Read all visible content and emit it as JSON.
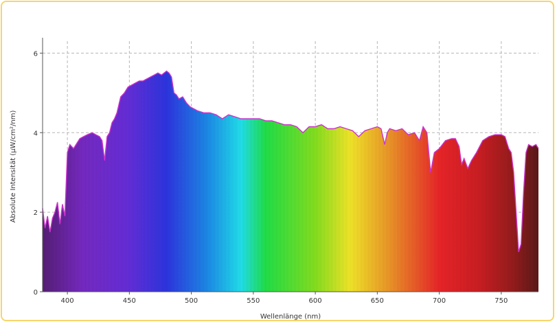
{
  "chart_data": {
    "type": "area",
    "title": "",
    "xlabel": "Wellenlänge (nm)",
    "ylabel": "Absolute Intensität (µW/cm²/nm)",
    "xlim": [
      380,
      780
    ],
    "ylim": [
      0,
      6.3
    ],
    "xticks": [
      400,
      450,
      500,
      550,
      600,
      650,
      700,
      750
    ],
    "yticks": [
      0,
      2,
      4,
      6
    ],
    "grid": true,
    "fill": "spectral-rainbow",
    "outline_color": "#cc33cc",
    "series": [
      {
        "x": [
          380,
          382,
          384,
          386,
          388,
          390,
          392,
          394,
          396,
          398,
          400,
          402,
          405,
          408,
          410,
          413,
          416,
          420,
          423,
          426,
          428,
          430,
          432,
          434,
          436,
          438,
          440,
          443,
          446,
          449,
          452,
          455,
          458,
          461,
          464,
          467,
          470,
          473,
          476,
          478,
          480,
          482,
          484,
          486,
          488,
          490,
          493,
          496,
          499,
          502,
          505,
          510,
          515,
          520,
          525,
          530,
          535,
          540,
          545,
          550,
          555,
          560,
          565,
          570,
          575,
          580,
          585,
          590,
          595,
          600,
          605,
          610,
          615,
          620,
          625,
          630,
          635,
          640,
          645,
          650,
          653,
          656,
          658,
          660,
          665,
          670,
          675,
          680,
          684,
          687,
          690,
          693,
          696,
          700,
          705,
          710,
          713,
          716,
          718,
          720,
          723,
          726,
          730,
          735,
          740,
          745,
          750,
          753,
          756,
          758,
          760,
          762,
          764,
          766,
          768,
          770,
          772,
          775,
          778,
          780
        ],
        "y": [
          2.1,
          1.6,
          1.9,
          1.5,
          1.85,
          2.0,
          2.25,
          1.7,
          2.2,
          1.9,
          3.5,
          3.7,
          3.6,
          3.75,
          3.85,
          3.9,
          3.95,
          4.0,
          3.95,
          3.9,
          3.8,
          3.3,
          3.9,
          4.0,
          4.25,
          4.35,
          4.5,
          4.9,
          5.0,
          5.15,
          5.2,
          5.25,
          5.3,
          5.3,
          5.35,
          5.4,
          5.45,
          5.5,
          5.45,
          5.5,
          5.55,
          5.5,
          5.4,
          5.0,
          4.95,
          4.85,
          4.9,
          4.75,
          4.65,
          4.6,
          4.55,
          4.5,
          4.5,
          4.45,
          4.35,
          4.45,
          4.4,
          4.35,
          4.35,
          4.35,
          4.35,
          4.3,
          4.3,
          4.25,
          4.2,
          4.2,
          4.15,
          4.0,
          4.15,
          4.15,
          4.2,
          4.1,
          4.1,
          4.15,
          4.1,
          4.05,
          3.9,
          4.05,
          4.1,
          4.15,
          4.1,
          3.7,
          4.0,
          4.1,
          4.05,
          4.1,
          3.95,
          4.0,
          3.8,
          4.15,
          4.0,
          3.0,
          3.5,
          3.6,
          3.8,
          3.85,
          3.85,
          3.65,
          3.2,
          3.35,
          3.1,
          3.3,
          3.5,
          3.8,
          3.9,
          3.95,
          3.95,
          3.9,
          3.6,
          3.5,
          3.0,
          2.0,
          1.0,
          1.2,
          2.5,
          3.5,
          3.7,
          3.65,
          3.7,
          3.6
        ]
      }
    ]
  }
}
